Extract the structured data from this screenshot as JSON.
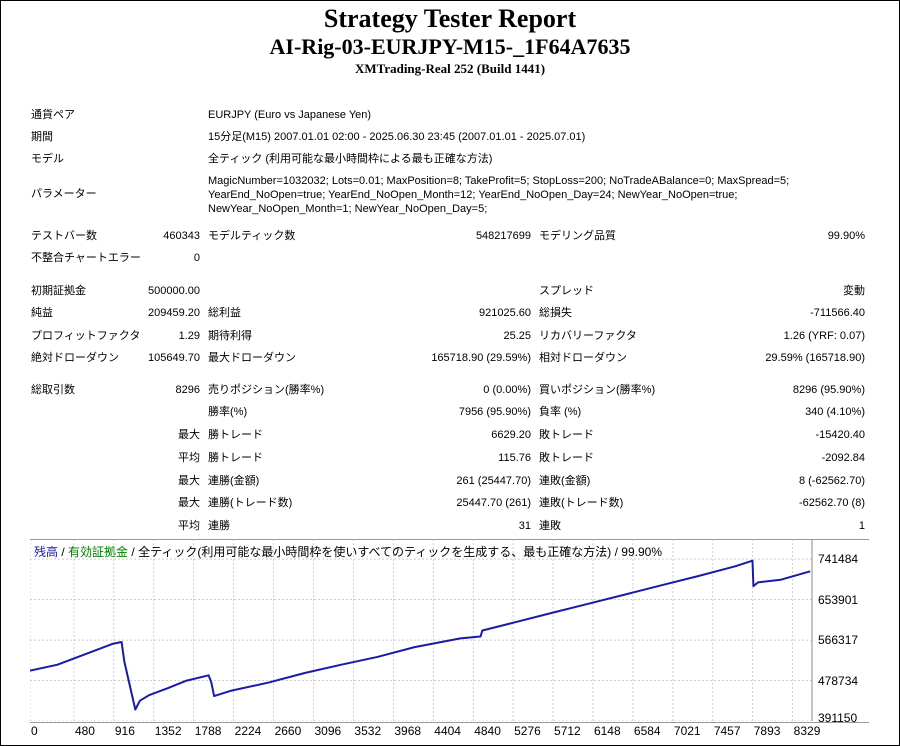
{
  "report": {
    "title": "Strategy Tester Report",
    "subtitle": "AI-Rig-03-EURJPY-M15-_1F64A7635",
    "server": "XMTrading-Real 252 (Build 1441)"
  },
  "settings": [
    {
      "label": "通貨ペア",
      "value": "EURJPY (Euro vs Japanese Yen)"
    },
    {
      "label": "期間",
      "value": "15分足(M15) 2007.01.01 02:00 - 2025.06.30 23:45 (2007.01.01 - 2025.07.01)"
    },
    {
      "label": "モデル",
      "value": "全ティック (利用可能な最小時間枠による最も正確な方法)"
    },
    {
      "label": "パラメーター",
      "lines": [
        "MagicNumber=1032032; Lots=0.01; MaxPosition=8; TakeProfit=5; StopLoss=200; NoTradeABalance=0; MaxSpread=5;",
        "YearEnd_NoOpen=true; YearEnd_NoOpen_Month=12; YearEnd_NoOpen_Day=24; NewYear_NoOpen=true;",
        "NewYear_NoOpen_Month=1; NewYear_NoOpen_Day=5;"
      ]
    }
  ],
  "stats_rows": [
    [
      "テストバー数",
      "460343",
      "モデルティック数",
      "548217699",
      "モデリング品質",
      "99.90%"
    ],
    [
      "不整合チャートエラー",
      "0",
      "",
      "",
      "",
      ""
    ],
    [
      "初期証拠金",
      "500000.00",
      "",
      "",
      "スプレッド",
      "変動"
    ],
    [
      "純益",
      "209459.20",
      "総利益",
      "921025.60",
      "総損失",
      "-711566.40"
    ],
    [
      "プロフィットファクタ",
      "1.29",
      "期待利得",
      "25.25",
      "リカバリーファクタ",
      "1.26 (YRF: 0.07)"
    ],
    [
      "絶対ドローダウン",
      "105649.70",
      "最大ドローダウン",
      "165718.90 (29.59%)",
      "相対ドローダウン",
      "29.59% (165718.90)"
    ],
    [
      "総取引数",
      "8296",
      "売りポジション(勝率%)",
      "0 (0.00%)",
      "買いポジション(勝率%)",
      "8296 (95.90%)"
    ],
    [
      "",
      "",
      "勝率(%)",
      "7956 (95.90%)",
      "負率 (%)",
      "340 (4.10%)"
    ],
    [
      "",
      "最大",
      "勝トレード",
      "6629.20",
      "敗トレード",
      "-15420.40"
    ],
    [
      "",
      "平均",
      "勝トレード",
      "115.76",
      "敗トレード",
      "-2092.84"
    ],
    [
      "",
      "最大",
      "連勝(金額)",
      "261 (25447.70)",
      "連敗(金額)",
      "8 (-62562.70)"
    ],
    [
      "",
      "最大",
      "連勝(トレード数)",
      "25447.70 (261)",
      "連敗(トレード数)",
      "-62562.70 (8)"
    ],
    [
      "",
      "平均",
      "連勝",
      "31",
      "連敗",
      "1"
    ]
  ],
  "chart_legend": {
    "balance": "残高",
    "sep1": " / ",
    "equity": "有効証拠金",
    "sep2": " / ",
    "model": "全ティック(利用可能な最小時間枠を使いすべてのティックを生成する、最も正確な方法) / 99.90%"
  },
  "colors": {
    "balance": "#1a1aa6",
    "equity": "#008000",
    "grid": "#b0b0b0"
  },
  "chart_data": {
    "type": "line",
    "title": "",
    "xlabel": "",
    "ylabel": "",
    "x_ticks": [
      "0",
      "480",
      "916",
      "1352",
      "1788",
      "2224",
      "2660",
      "3096",
      "3532",
      "3968",
      "4404",
      "4840",
      "5276",
      "5712",
      "6148",
      "6584",
      "7021",
      "7457",
      "7893",
      "8329"
    ],
    "y_ticks": [
      "741484",
      "653901",
      "566317",
      "478734",
      "391150"
    ],
    "xlim": [
      0,
      8540
    ],
    "ylim": [
      391150,
      785000
    ],
    "grid": true,
    "series": [
      {
        "name": "残高",
        "x": [
          0,
          300,
          900,
          1000,
          1030,
          1150,
          1200,
          1300,
          1500,
          1700,
          1950,
          1980,
          2010,
          2200,
          2600,
          3000,
          3400,
          3800,
          4200,
          4700,
          4920,
          4940,
          5300,
          5700,
          6100,
          6500,
          6900,
          7300,
          7700,
          7890,
          7900,
          7950,
          8200,
          8520
        ],
        "y": [
          500000,
          513000,
          558000,
          562000,
          520000,
          416000,
          435000,
          447000,
          462000,
          478000,
          490000,
          475000,
          445000,
          457000,
          474000,
          495000,
          513000,
          530000,
          551000,
          570000,
          574000,
          587000,
          605000,
          625000,
          645000,
          665000,
          685000,
          705000,
          726000,
          738000,
          683000,
          691000,
          697000,
          715000
        ]
      }
    ]
  }
}
